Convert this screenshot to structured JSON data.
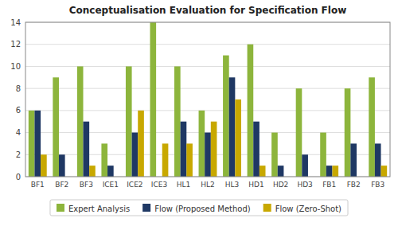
{
  "chart_data": {
    "type": "bar",
    "title": "Conceptualisation Evaluation for Specification Flow",
    "categories": [
      "BF1",
      "BF2",
      "BF3",
      "ICE1",
      "ICE2",
      "ICE3",
      "HL1",
      "HL2",
      "HL3",
      "HD1",
      "HD2",
      "HD3",
      "FB1",
      "FB2",
      "FB3"
    ],
    "series": [
      {
        "name": "Expert Analysis",
        "color": "#8db53c",
        "values": [
          6,
          9,
          10,
          3,
          10,
          14,
          10,
          6,
          11,
          12,
          4,
          8,
          4,
          8,
          9
        ]
      },
      {
        "name": "Flow (Proposed Method)",
        "color": "#1f3864",
        "values": [
          6,
          2,
          5,
          1,
          4,
          0,
          5,
          4,
          9,
          5,
          1,
          2,
          1,
          3,
          3
        ]
      },
      {
        "name": "Flow (Zero-Shot)",
        "color": "#c8a800",
        "values": [
          2,
          0,
          1,
          0,
          6,
          3,
          3,
          5,
          7,
          1,
          0,
          0,
          1,
          0,
          1
        ]
      }
    ],
    "ylim": [
      0,
      14
    ],
    "yticks": [
      0,
      2,
      4,
      6,
      8,
      10,
      12,
      14
    ],
    "grid": true,
    "legend": "bottom"
  }
}
